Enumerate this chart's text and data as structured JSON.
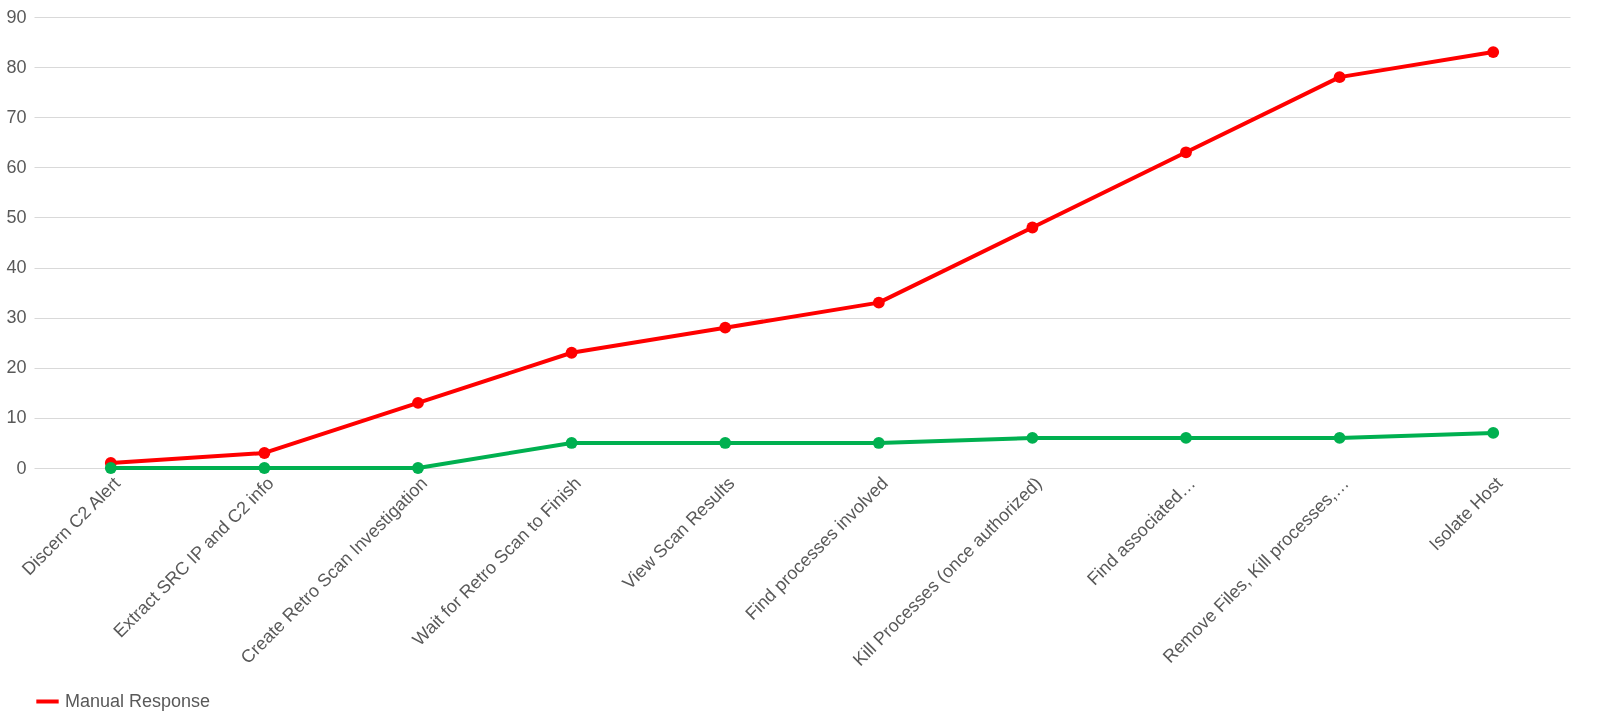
{
  "chart_data": {
    "type": "line",
    "categories": [
      "Discern C2 Alert",
      "Extract SRC IP and C2 info",
      "Create Retro Scan Investigation",
      "Wait for Retro Scan to Finish",
      "View Scan Results",
      "Find processes involved",
      "Kill Processes (once authorized)",
      "Find associated…",
      "Remove Files, Kill processes,…",
      "Isolate Host"
    ],
    "series": [
      {
        "name": "Manual Response",
        "color": "#ff0000",
        "values": [
          1,
          3,
          13,
          23,
          28,
          33,
          48,
          63,
          78,
          83
        ]
      },
      {
        "color": "#00b050",
        "values": [
          0,
          0,
          0,
          5,
          5,
          5,
          6,
          6,
          6,
          7
        ]
      }
    ],
    "ylim": [
      0,
      90
    ],
    "yticks": [
      0,
      10,
      20,
      30,
      40,
      50,
      60,
      70,
      80,
      90
    ],
    "grid": "y",
    "legend": "bottom",
    "marker": "circle"
  }
}
